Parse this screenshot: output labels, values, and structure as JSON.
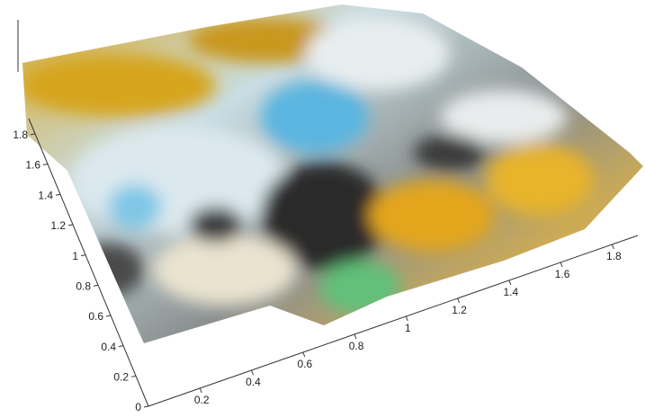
{
  "chart_data": {
    "type": "surface",
    "xlim": [
      0,
      1.9
    ],
    "xticks": [
      0.2,
      0.4,
      0.6,
      0.8,
      1,
      1.2,
      1.4,
      1.6,
      1.8
    ],
    "ylim": [
      0,
      1.9
    ],
    "yticks": [
      0,
      0.2,
      0.4,
      0.6,
      0.8,
      1,
      1.2,
      1.4,
      1.6,
      1.8
    ]
  }
}
